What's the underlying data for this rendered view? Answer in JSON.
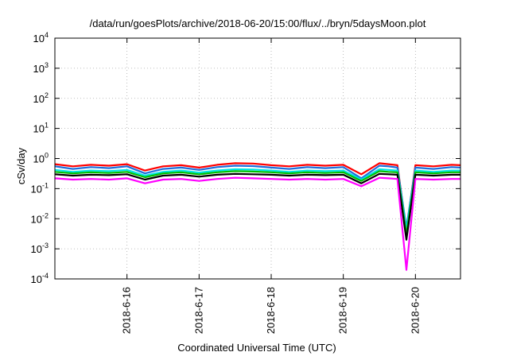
{
  "chart_data": {
    "type": "line",
    "title": "/data/run/goesPlots/archive/2018-06-20/15:00/flux/../bryn/5daysMoon.plot",
    "xlabel": "Coordinated Universal Time (UTC)",
    "ylabel": "cSv/day",
    "y_scale": "log",
    "ylim": [
      0.0001,
      10000
    ],
    "y_ticks": [
      {
        "value": 0.0001,
        "base": "10",
        "exp": "-4"
      },
      {
        "value": 0.001,
        "base": "10",
        "exp": "-3"
      },
      {
        "value": 0.01,
        "base": "10",
        "exp": "-2"
      },
      {
        "value": 0.1,
        "base": "10",
        "exp": "-1"
      },
      {
        "value": 1,
        "base": "10",
        "exp": "0"
      },
      {
        "value": 10,
        "base": "10",
        "exp": "1"
      },
      {
        "value": 100,
        "base": "10",
        "exp": "2"
      },
      {
        "value": 1000,
        "base": "10",
        "exp": "3"
      },
      {
        "value": 10000,
        "base": "10",
        "exp": "4"
      }
    ],
    "xlim": [
      "2018-06-15 00:00",
      "2018-06-20 15:00"
    ],
    "x_ticks": [
      {
        "date": "2018-06-16",
        "label": "2018-6-16"
      },
      {
        "date": "2018-06-17",
        "label": "2018-6-17"
      },
      {
        "date": "2018-06-18",
        "label": "2018-6-18"
      },
      {
        "date": "2018-06-19",
        "label": "2018-6-19"
      },
      {
        "date": "2018-06-20",
        "label": "2018-6-20"
      }
    ],
    "grid": true,
    "legend": "none",
    "x": [
      "2018-06-15 00:00",
      "2018-06-15 06:00",
      "2018-06-15 12:00",
      "2018-06-15 18:00",
      "2018-06-16 00:00",
      "2018-06-16 06:00",
      "2018-06-16 12:00",
      "2018-06-16 18:00",
      "2018-06-17 00:00",
      "2018-06-17 06:00",
      "2018-06-17 12:00",
      "2018-06-17 18:00",
      "2018-06-18 00:00",
      "2018-06-18 06:00",
      "2018-06-18 12:00",
      "2018-06-18 18:00",
      "2018-06-19 00:00",
      "2018-06-19 06:00",
      "2018-06-19 12:00",
      "2018-06-19 15:00",
      "2018-06-19 18:00",
      "2018-06-19 21:00",
      "2018-06-20 00:00",
      "2018-06-20 06:00",
      "2018-06-20 12:00",
      "2018-06-20 15:00"
    ],
    "series": [
      {
        "color": "#ff0000",
        "values": [
          0.65,
          0.55,
          0.62,
          0.58,
          0.65,
          0.4,
          0.55,
          0.6,
          0.5,
          0.62,
          0.7,
          0.68,
          0.6,
          0.55,
          0.62,
          0.58,
          0.62,
          0.3,
          0.7,
          0.65,
          0.6,
          0.004,
          0.6,
          0.55,
          0.62,
          0.6
        ]
      },
      {
        "color": "#1e6fdc",
        "values": [
          0.55,
          0.45,
          0.52,
          0.48,
          0.55,
          0.32,
          0.45,
          0.5,
          0.42,
          0.52,
          0.58,
          0.56,
          0.5,
          0.45,
          0.52,
          0.48,
          0.52,
          0.22,
          0.58,
          0.55,
          0.5,
          0.005,
          0.5,
          0.45,
          0.52,
          0.5
        ]
      },
      {
        "color": "#00e5e5",
        "values": [
          0.42,
          0.36,
          0.4,
          0.38,
          0.42,
          0.27,
          0.36,
          0.4,
          0.34,
          0.4,
          0.44,
          0.43,
          0.4,
          0.36,
          0.4,
          0.38,
          0.4,
          0.2,
          0.44,
          0.42,
          0.4,
          0.004,
          0.4,
          0.36,
          0.4,
          0.4
        ]
      },
      {
        "color": "#00c000",
        "values": [
          0.36,
          0.32,
          0.35,
          0.33,
          0.36,
          0.24,
          0.32,
          0.35,
          0.3,
          0.35,
          0.38,
          0.37,
          0.35,
          0.32,
          0.35,
          0.33,
          0.35,
          0.18,
          0.38,
          0.36,
          0.35,
          0.003,
          0.35,
          0.32,
          0.35,
          0.35
        ]
      },
      {
        "color": "#000000",
        "values": [
          0.3,
          0.27,
          0.29,
          0.28,
          0.3,
          0.2,
          0.27,
          0.29,
          0.25,
          0.29,
          0.31,
          0.3,
          0.29,
          0.27,
          0.29,
          0.28,
          0.29,
          0.15,
          0.31,
          0.3,
          0.29,
          0.002,
          0.29,
          0.27,
          0.29,
          0.29
        ]
      },
      {
        "color": "#ff00ff",
        "values": [
          0.22,
          0.2,
          0.21,
          0.2,
          0.22,
          0.15,
          0.2,
          0.21,
          0.18,
          0.21,
          0.23,
          0.22,
          0.21,
          0.2,
          0.21,
          0.2,
          0.21,
          0.12,
          0.23,
          0.22,
          0.21,
          0.0002,
          0.21,
          0.2,
          0.21,
          0.21
        ]
      }
    ]
  }
}
